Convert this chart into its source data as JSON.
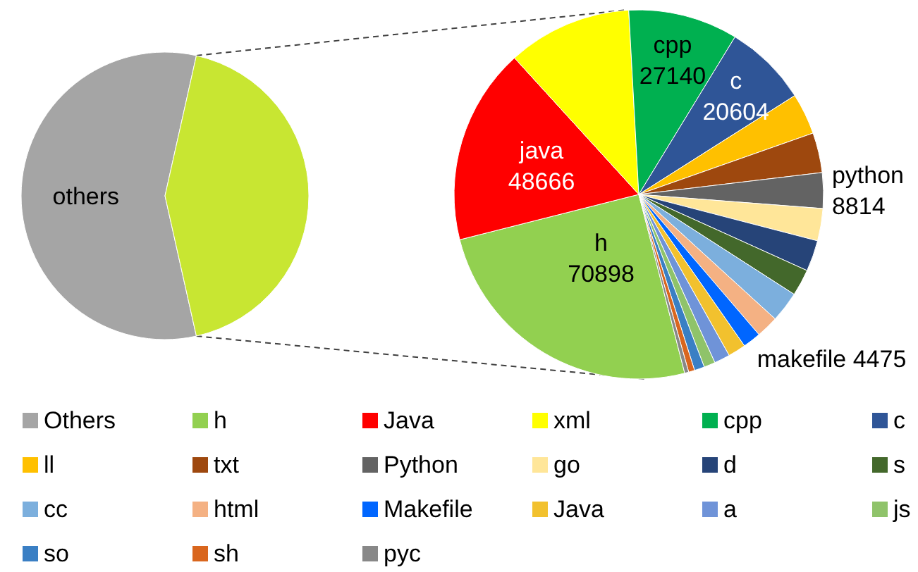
{
  "chart_data": [
    {
      "type": "pie",
      "categories": [
        "Others",
        null
      ],
      "values": [
        57,
        43
      ],
      "colors": [
        "#a5a5a5",
        "#c8e632"
      ],
      "value_labels": [
        "others",
        null
      ],
      "legend": "bottom"
    },
    {
      "type": "pie",
      "categories": [
        "h",
        "Java",
        "xml",
        "cpp",
        "c",
        "ll",
        "txt",
        "Python",
        "go",
        "d",
        "s",
        "cc",
        "html",
        "Makefile",
        "Java",
        "a",
        "js",
        "so",
        "sh",
        "pyc"
      ],
      "values": [
        70898,
        48666,
        30800,
        27140,
        20604,
        10200,
        9900,
        8814,
        8000,
        7700,
        6600,
        7600,
        5500,
        4475,
        4400,
        3900,
        2800,
        2500,
        1500,
        1000
      ],
      "colors": [
        "#92d050",
        "#ff0000",
        "#ffff00",
        "#00b050",
        "#2f5597",
        "#ffc000",
        "#9e480e",
        "#636363",
        "#ffe699",
        "#264478",
        "#43682b",
        "#7cafdd",
        "#f4b183",
        "#0066ff",
        "#f2c12e",
        "#6f93d8",
        "#8fc36a",
        "#3a7fc4",
        "#d9661e",
        "#888888"
      ],
      "value_labels": [
        "h\n70898",
        "java\n48666",
        null,
        "cpp\n27140",
        "c\n20604",
        null,
        null,
        "python\n8814",
        null,
        null,
        null,
        null,
        null,
        "makefile 4475",
        null,
        null,
        null,
        null,
        null,
        null
      ],
      "legend": "bottom"
    }
  ]
}
